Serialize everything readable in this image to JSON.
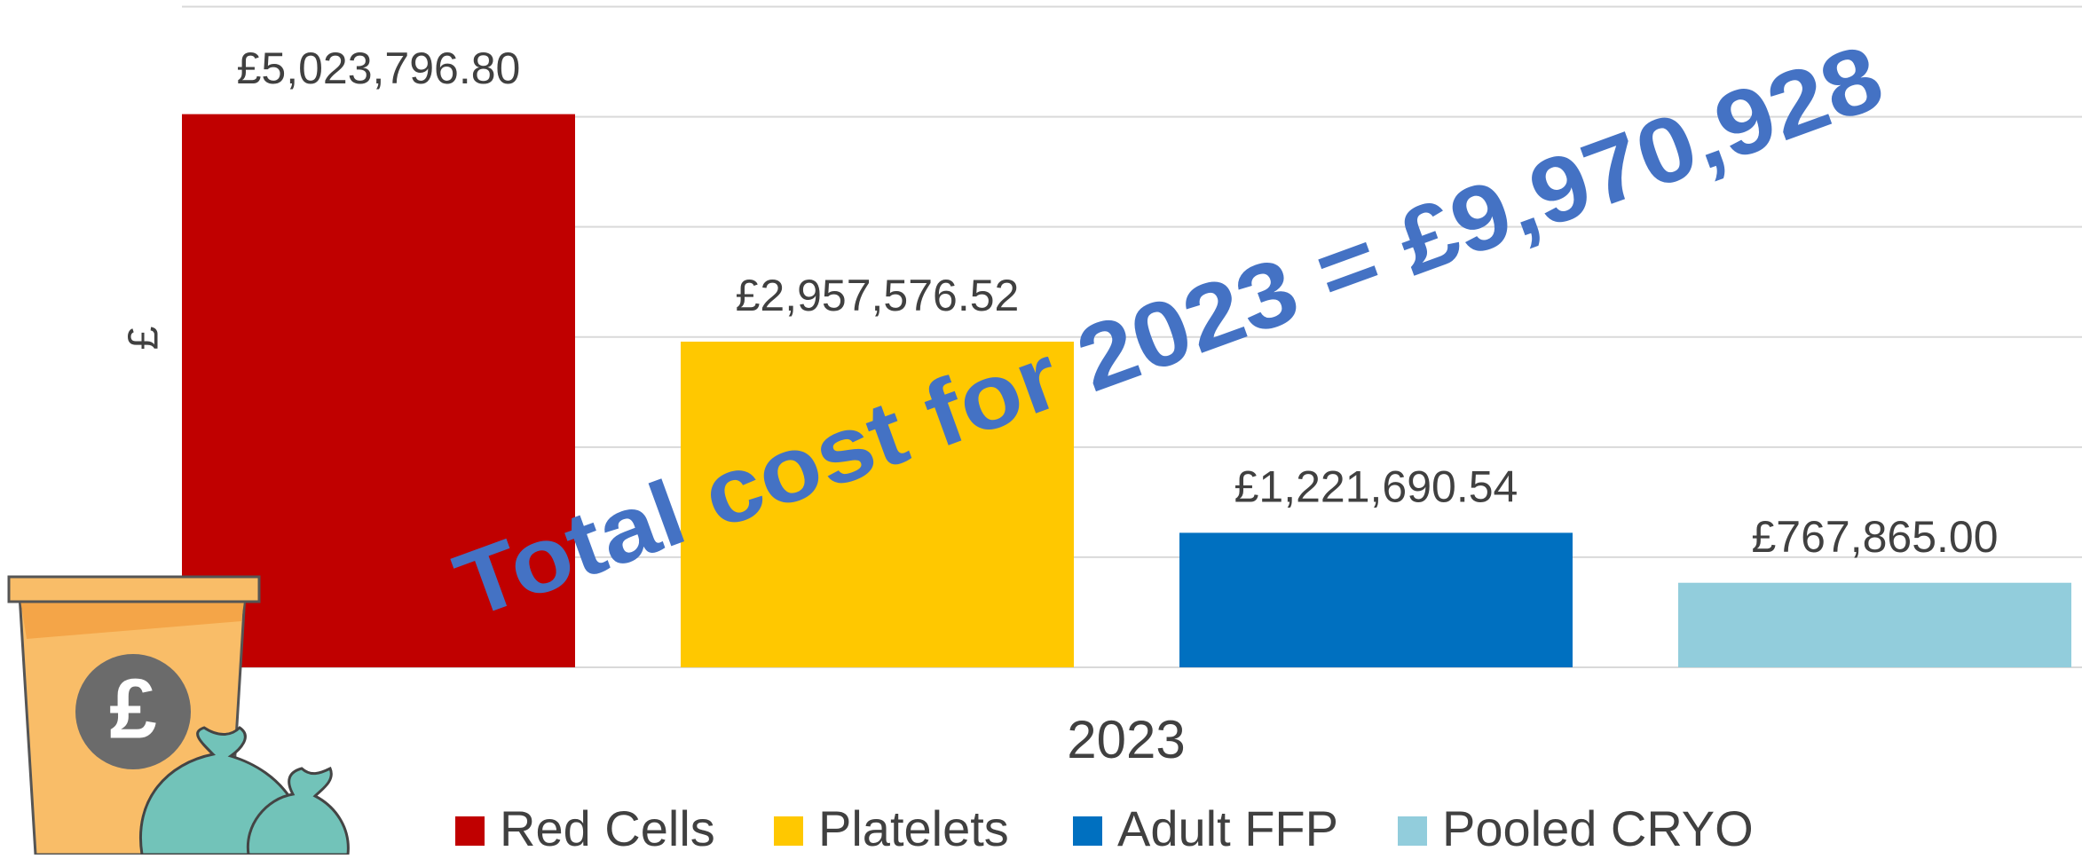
{
  "chart_data": {
    "type": "bar",
    "categories": [
      "2023"
    ],
    "y_label": "£",
    "annotation": "Total cost for 2023 = £9,970,928",
    "icon_text": "£",
    "series": [
      {
        "name": "Red Cells",
        "color": "#c00000",
        "values": [
          5023796.8
        ],
        "value_labels": [
          "£5,023,796.80"
        ]
      },
      {
        "name": "Platelets",
        "color": "#ffc800",
        "values": [
          2957576.52
        ],
        "value_labels": [
          "£2,957,576.52"
        ]
      },
      {
        "name": "Adult FFP",
        "color": "#0070c0",
        "values": [
          1221690.54
        ],
        "value_labels": [
          "£1,221,690.54"
        ]
      },
      {
        "name": "Pooled CRYO",
        "color": "#92cddc",
        "values": [
          767865.0
        ],
        "value_labels": [
          "£767,865.00"
        ]
      }
    ],
    "ylim": [
      0,
      6000000
    ],
    "yticks": [
      0,
      1000000,
      2000000,
      3000000,
      4000000,
      5000000,
      6000000
    ],
    "grid": true,
    "annotation_color": "#4472c4"
  }
}
